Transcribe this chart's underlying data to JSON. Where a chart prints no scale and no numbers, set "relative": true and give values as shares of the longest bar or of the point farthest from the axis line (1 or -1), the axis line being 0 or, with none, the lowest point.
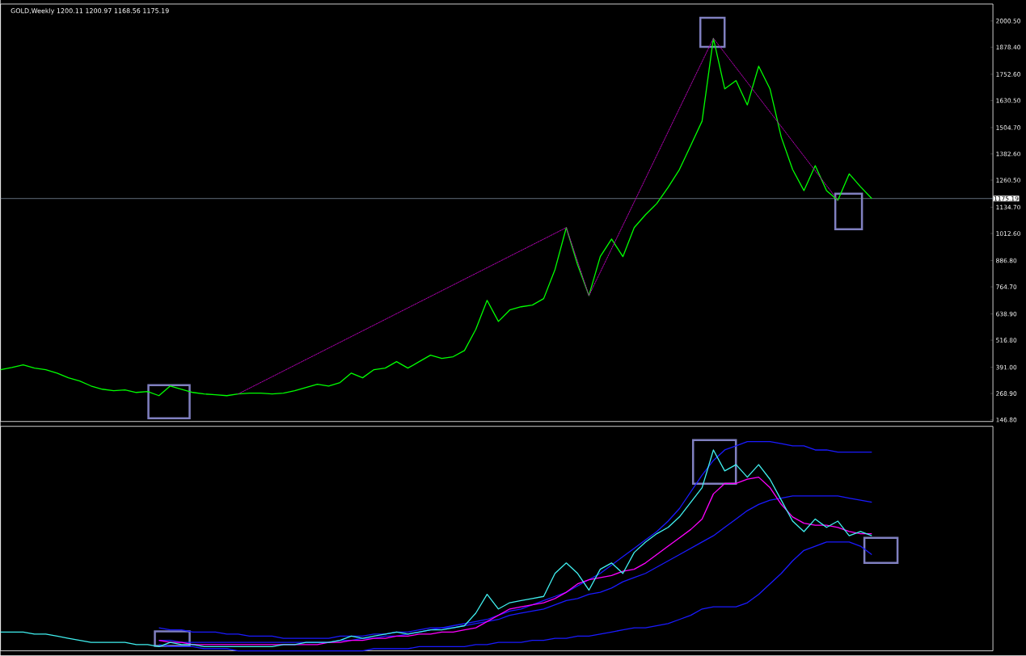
{
  "chart_data": [
    {
      "type": "line",
      "title": "GOLD,Weekly  1200.11 1200.97 1168.56 1175.19",
      "categories": [
        null,
        null,
        null,
        null,
        null,
        null,
        null,
        null,
        null,
        null,
        null,
        null,
        null,
        null,
        null,
        null,
        null,
        null,
        null,
        null,
        null,
        null,
        null,
        null,
        null,
        null,
        null,
        null,
        null,
        null,
        null,
        null,
        null,
        null,
        null,
        null,
        null,
        null,
        null,
        null,
        null,
        null,
        null,
        null,
        null,
        null,
        null,
        null,
        null,
        null,
        null,
        null,
        null,
        null,
        null,
        null,
        null,
        null,
        null,
        null,
        null,
        null,
        null,
        null,
        null,
        null,
        null,
        null,
        null,
        null,
        null,
        null,
        null,
        null,
        null,
        null,
        null,
        null
      ],
      "series": [
        {
          "color": "#00ff00",
          "values": [
            380,
            390,
            402,
            387,
            380,
            364,
            342,
            327,
            304,
            289,
            282,
            286,
            274,
            278,
            259,
            304,
            289,
            274,
            267,
            263,
            259,
            267,
            271,
            271,
            267,
            271,
            282,
            297,
            312,
            304,
            320,
            364,
            342,
            380,
            387,
            417,
            387,
            417,
            447,
            432,
            440,
            469,
            567,
            702,
            604,
            657,
            672,
            680,
            710,
            845,
            1040,
            867,
            724,
            905,
            987,
            905,
            1040,
            1100,
            1152,
            1227,
            1310,
            1422,
            1535,
            1920,
            1685,
            1723,
            1610,
            1790,
            1685,
            1460,
            1310,
            1212,
            1328,
            1212,
            1167,
            1290,
            1230,
            1175.19
          ]
        },
        {
          "color": "#b000b0",
          "line_style": "dashed",
          "values": [
            null,
            null,
            null,
            null,
            null,
            null,
            null,
            null,
            null,
            null,
            null,
            null,
            null,
            null,
            null,
            null,
            null,
            null,
            null,
            null,
            null,
            267,
            null,
            null,
            null,
            null,
            null,
            null,
            null,
            null,
            null,
            null,
            null,
            null,
            null,
            null,
            null,
            null,
            null,
            null,
            null,
            null,
            null,
            null,
            null,
            null,
            null,
            null,
            null,
            null,
            1040,
            null,
            724,
            null,
            null,
            null,
            null,
            null,
            null,
            null,
            null,
            null,
            null,
            1920,
            null,
            null,
            null,
            null,
            null,
            null,
            null,
            null,
            null,
            null,
            1167,
            null,
            null,
            null
          ]
        }
      ],
      "ylim": [
        139,
        2079
      ],
      "yticks": [
        {
          "value": 2000.5,
          "label": "2000.50"
        },
        {
          "value": 1878.4,
          "label": "1878.40"
        },
        {
          "value": 1752.6,
          "label": "1752.60"
        },
        {
          "value": 1630.5,
          "label": "1630.50"
        },
        {
          "value": 1504.7,
          "label": "1504.70"
        },
        {
          "value": 1382.6,
          "label": "1382.60"
        },
        {
          "value": 1260.5,
          "label": "1260.50"
        },
        {
          "value": 1134.7,
          "label": "1134.70"
        },
        {
          "value": 1012.6,
          "label": "1012.60"
        },
        {
          "value": 886.8,
          "label": "886.80"
        },
        {
          "value": 764.7,
          "label": "764.70"
        },
        {
          "value": 638.9,
          "label": "638.90"
        },
        {
          "value": 516.8,
          "label": "516.80"
        },
        {
          "value": 391,
          "label": "391.00"
        },
        {
          "value": 268.9,
          "label": "268.90"
        },
        {
          "value": 146.8,
          "label": "146.80"
        }
      ],
      "ref_lines": [
        {
          "axis": "y",
          "value": 1175.19,
          "label": "1175.19",
          "color": "#8c9cb0"
        }
      ],
      "tick_labels": "y"
    },
    {
      "type": "line",
      "relative": true,
      "categories": [
        null,
        null,
        null,
        null,
        null,
        null,
        null,
        null,
        null,
        null,
        null,
        null,
        null,
        null,
        null,
        null,
        null,
        null,
        null,
        null,
        null,
        null,
        null,
        null,
        null,
        null,
        null,
        null,
        null,
        null,
        null,
        null,
        null,
        null,
        null,
        null,
        null,
        null,
        null,
        null,
        null,
        null,
        null,
        null,
        null,
        null,
        null,
        null,
        null,
        null,
        null,
        null,
        null,
        null,
        null,
        null,
        null,
        null,
        null,
        null,
        null,
        null,
        null,
        null,
        null,
        null,
        null,
        null,
        null,
        null,
        null,
        null,
        null,
        null,
        null,
        null,
        null,
        null
      ],
      "series": [
        {
          "color": "#1a1aff",
          "values": [
            null,
            null,
            null,
            null,
            null,
            null,
            null,
            null,
            null,
            null,
            null,
            null,
            null,
            null,
            0.11,
            0.1,
            0.1,
            0.09,
            0.09,
            0.09,
            0.08,
            0.08,
            0.07,
            0.07,
            0.07,
            0.06,
            0.06,
            0.06,
            0.06,
            0.06,
            0.07,
            0.07,
            0.07,
            0.08,
            0.08,
            0.09,
            0.09,
            0.1,
            0.11,
            0.11,
            0.12,
            0.13,
            0.14,
            0.15,
            0.17,
            0.19,
            0.2,
            0.22,
            0.24,
            0.26,
            0.28,
            0.31,
            0.34,
            0.37,
            0.41,
            0.45,
            0.49,
            0.53,
            0.57,
            0.62,
            0.68,
            0.76,
            0.84,
            0.91,
            0.96,
            0.98,
            1,
            1,
            1,
            0.99,
            0.98,
            0.98,
            0.96,
            0.96,
            0.95,
            0.95,
            0.95,
            0.95
          ]
        },
        {
          "color": "#1a1aff",
          "values": [
            null,
            null,
            null,
            null,
            null,
            null,
            null,
            null,
            null,
            null,
            null,
            null,
            null,
            null,
            0.05,
            0.05,
            0.04,
            0.04,
            0.04,
            0.04,
            0.04,
            0.04,
            0.04,
            0.04,
            0.04,
            0.04,
            0.04,
            0.04,
            0.04,
            0.04,
            0.05,
            0.05,
            0.06,
            0.06,
            0.07,
            0.07,
            0.08,
            0.09,
            0.1,
            0.11,
            0.11,
            0.12,
            0.13,
            0.14,
            0.15,
            0.17,
            0.18,
            0.19,
            0.2,
            0.22,
            0.24,
            0.25,
            0.27,
            0.28,
            0.3,
            0.33,
            0.35,
            0.37,
            0.4,
            0.43,
            0.46,
            0.49,
            0.52,
            0.55,
            0.59,
            0.63,
            0.67,
            0.7,
            0.72,
            0.73,
            0.74,
            0.74,
            0.74,
            0.74,
            0.74,
            0.73,
            0.72,
            0.71
          ]
        },
        {
          "color": "#1a1aff",
          "values": [
            null,
            null,
            null,
            null,
            null,
            null,
            null,
            null,
            null,
            null,
            null,
            null,
            null,
            null,
            0.03,
            0.02,
            0.02,
            0.02,
            0.01,
            0.01,
            0.01,
            0,
            0,
            0,
            0,
            0,
            0,
            0,
            0,
            0,
            0,
            0,
            0,
            0.01,
            0.01,
            0.01,
            0.01,
            0.02,
            0.02,
            0.02,
            0.02,
            0.02,
            0.03,
            0.03,
            0.04,
            0.04,
            0.04,
            0.05,
            0.05,
            0.06,
            0.06,
            0.07,
            0.07,
            0.08,
            0.09,
            0.1,
            0.11,
            0.11,
            0.12,
            0.13,
            0.15,
            0.17,
            0.2,
            0.21,
            0.21,
            0.21,
            0.23,
            0.27,
            0.32,
            0.37,
            0.43,
            0.48,
            0.5,
            0.52,
            0.52,
            0.52,
            0.5,
            0.46
          ]
        },
        {
          "color": "#ff00ff",
          "values": [
            null,
            null,
            null,
            null,
            null,
            null,
            null,
            null,
            null,
            null,
            null,
            null,
            null,
            null,
            0.05,
            0.04,
            0.04,
            0.03,
            0.03,
            0.03,
            0.03,
            0.03,
            0.03,
            0.03,
            0.03,
            0.03,
            0.03,
            0.03,
            0.03,
            0.04,
            0.04,
            0.05,
            0.05,
            0.06,
            0.06,
            0.07,
            0.07,
            0.08,
            0.08,
            0.09,
            0.09,
            0.1,
            0.11,
            0.14,
            0.17,
            0.2,
            0.21,
            0.22,
            0.23,
            0.25,
            0.28,
            0.32,
            0.34,
            0.35,
            0.36,
            0.38,
            0.39,
            0.42,
            0.46,
            0.5,
            0.54,
            0.58,
            0.63,
            0.75,
            0.8,
            0.8,
            0.82,
            0.83,
            0.78,
            0.7,
            0.64,
            0.61,
            0.6,
            0.6,
            0.59,
            0.57,
            0.56,
            0.56
          ]
        },
        {
          "color": "#40f0f0",
          "values": [
            0.09,
            0.09,
            0.09,
            0.08,
            0.08,
            0.07,
            0.06,
            0.05,
            0.04,
            0.04,
            0.04,
            0.04,
            0.03,
            0.03,
            0.02,
            0.04,
            0.03,
            0.03,
            0.02,
            0.02,
            0.02,
            0.02,
            0.02,
            0.02,
            0.02,
            0.03,
            0.03,
            0.04,
            0.04,
            0.04,
            0.05,
            0.07,
            0.06,
            0.07,
            0.08,
            0.09,
            0.08,
            0.09,
            0.1,
            0.1,
            0.11,
            0.12,
            0.18,
            0.27,
            0.2,
            0.23,
            0.24,
            0.25,
            0.26,
            0.37,
            0.42,
            0.37,
            0.29,
            0.39,
            0.42,
            0.37,
            0.47,
            0.52,
            0.56,
            0.59,
            0.64,
            0.71,
            0.78,
            0.96,
            0.86,
            0.89,
            0.83,
            0.89,
            0.82,
            0.72,
            0.62,
            0.57,
            0.63,
            0.59,
            0.62,
            0.55,
            0.57,
            0.55
          ]
        }
      ],
      "tick_labels": false
    }
  ]
}
